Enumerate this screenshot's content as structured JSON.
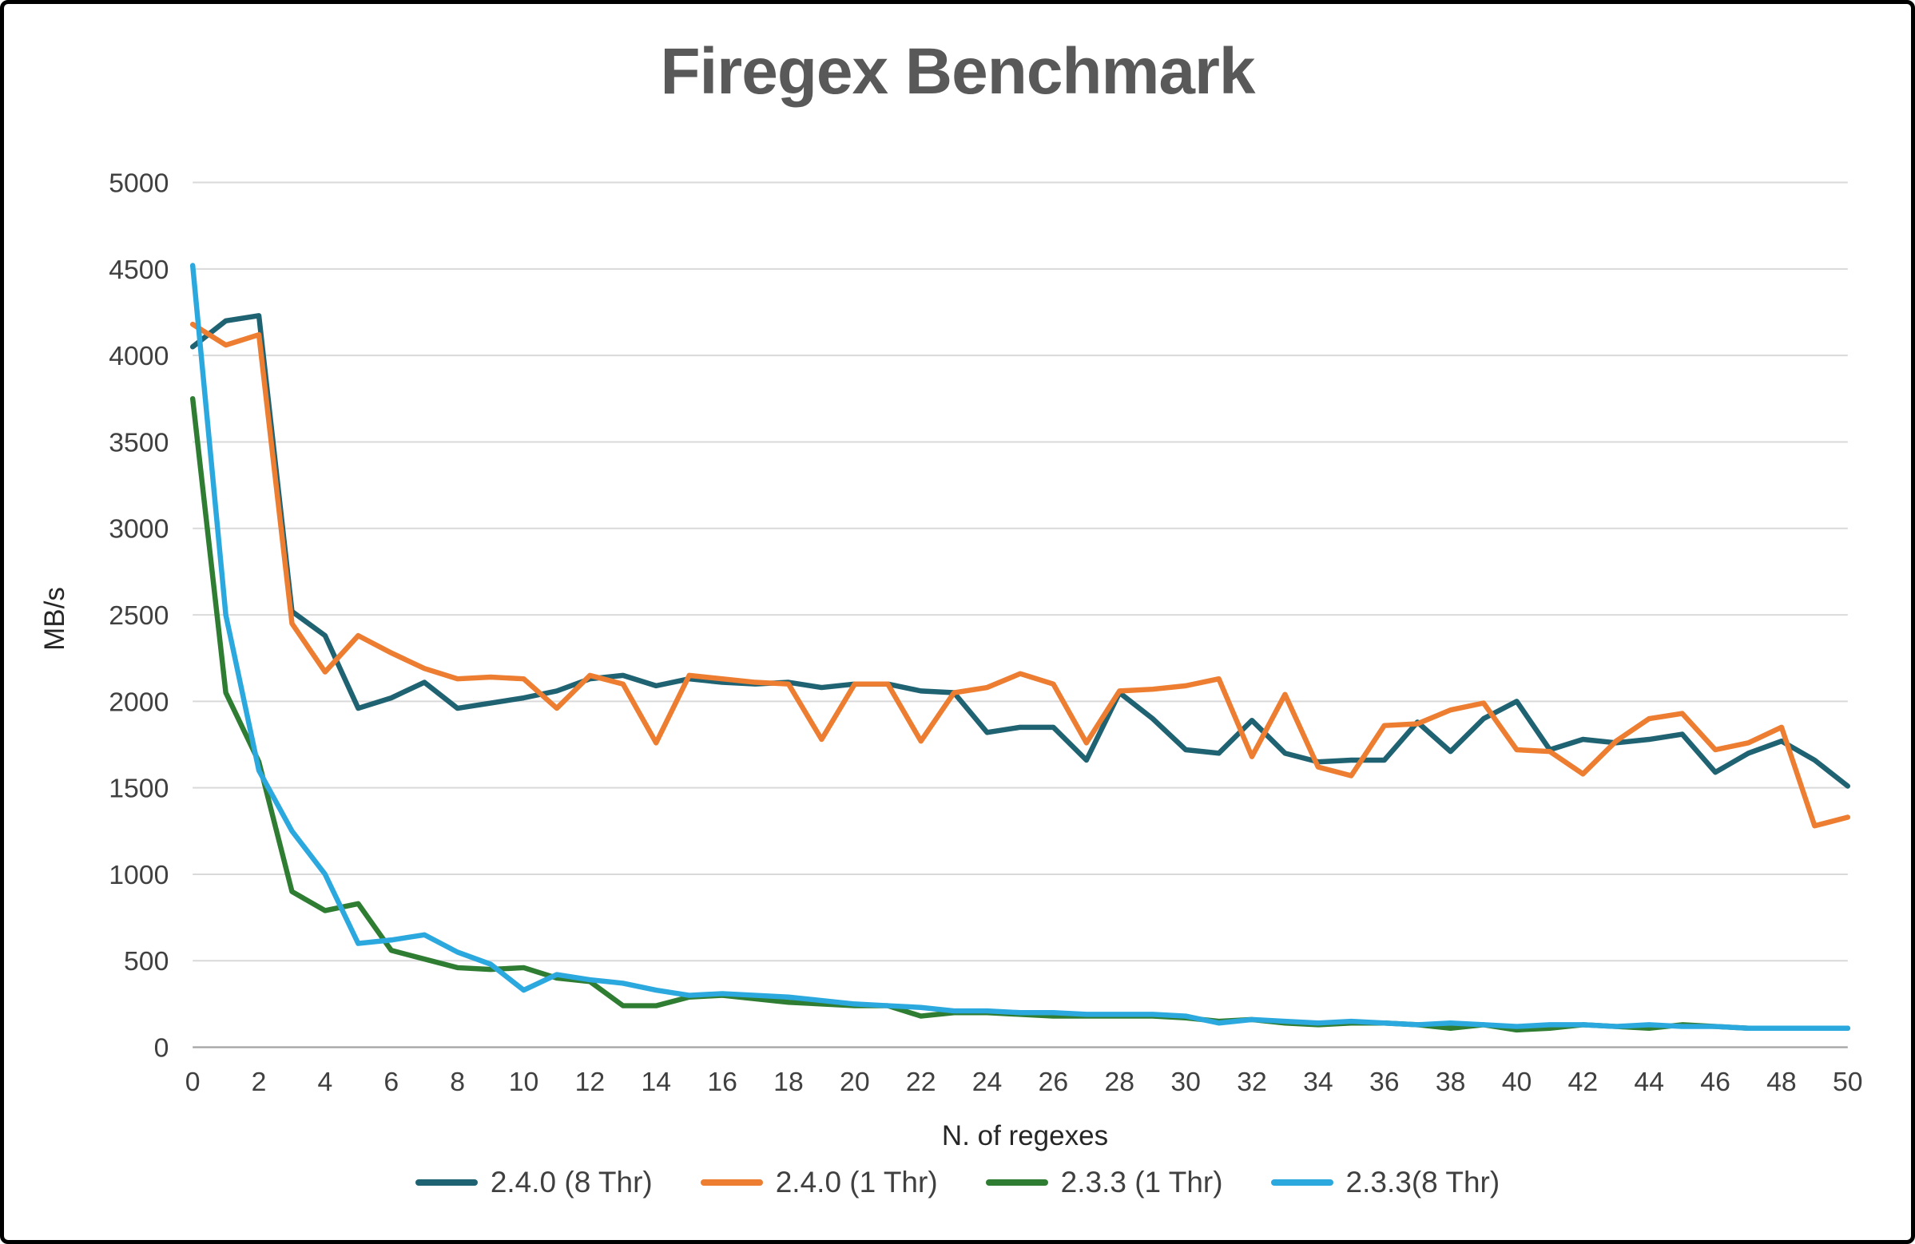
{
  "chart_data": {
    "type": "line",
    "title": "Firegex Benchmark",
    "xlabel": "N. of regexes",
    "ylabel": "MB/s",
    "ylim": [
      0,
      5000
    ],
    "ytick_step": 500,
    "xtick_step": 2,
    "grid": true,
    "legend_position": "bottom",
    "x": [
      0,
      1,
      2,
      3,
      4,
      5,
      6,
      7,
      8,
      9,
      10,
      11,
      12,
      13,
      14,
      15,
      16,
      17,
      18,
      19,
      20,
      21,
      22,
      23,
      24,
      25,
      26,
      27,
      28,
      29,
      30,
      31,
      32,
      33,
      34,
      35,
      36,
      37,
      38,
      39,
      40,
      41,
      42,
      43,
      44,
      45,
      46,
      47,
      48,
      49,
      50
    ],
    "series": [
      {
        "name": "2.4.0 (8 Thr)",
        "color": "#1F6373",
        "values": [
          4050,
          4200,
          4230,
          2520,
          2380,
          1960,
          2020,
          2110,
          1960,
          1990,
          2020,
          2060,
          2130,
          2150,
          2090,
          2130,
          2110,
          2100,
          2110,
          2080,
          2100,
          2100,
          2060,
          2050,
          1820,
          1850,
          1850,
          1660,
          2050,
          1900,
          1720,
          1700,
          1890,
          1700,
          1650,
          1660,
          1660,
          1880,
          1710,
          1900,
          2000,
          1720,
          1780,
          1760,
          1780,
          1810,
          1590,
          1700,
          1770,
          1660,
          1510
        ]
      },
      {
        "name": "2.4.0 (1 Thr)",
        "color": "#ED7D31",
        "values": [
          4180,
          4060,
          4120,
          2450,
          2170,
          2380,
          2280,
          2190,
          2130,
          2140,
          2130,
          1960,
          2150,
          2100,
          1760,
          2150,
          2130,
          2110,
          2100,
          1780,
          2100,
          2100,
          1770,
          2050,
          2080,
          2160,
          2100,
          1760,
          2060,
          2070,
          2090,
          2130,
          1680,
          2040,
          1620,
          1570,
          1860,
          1870,
          1950,
          1990,
          1720,
          1710,
          1580,
          1770,
          1900,
          1930,
          1720,
          1760,
          1850,
          1280,
          1330
        ]
      },
      {
        "name": "2.3.3 (1 Thr)",
        "color": "#2E7D32",
        "values": [
          3750,
          2050,
          1650,
          900,
          790,
          830,
          560,
          510,
          460,
          450,
          460,
          400,
          380,
          240,
          240,
          290,
          300,
          280,
          260,
          250,
          240,
          240,
          180,
          200,
          200,
          190,
          180,
          180,
          180,
          180,
          170,
          150,
          160,
          140,
          130,
          140,
          140,
          130,
          110,
          130,
          100,
          110,
          130,
          120,
          110,
          130,
          120,
          110,
          110,
          110,
          110
        ]
      },
      {
        "name": "2.3.3(8 Thr)",
        "color": "#2BA9DF",
        "values": [
          4520,
          2500,
          1600,
          1250,
          1000,
          600,
          620,
          650,
          550,
          480,
          330,
          420,
          390,
          370,
          330,
          300,
          310,
          300,
          290,
          270,
          250,
          240,
          230,
          210,
          210,
          200,
          200,
          190,
          190,
          190,
          180,
          140,
          160,
          150,
          140,
          150,
          140,
          130,
          140,
          130,
          120,
          130,
          130,
          120,
          130,
          120,
          120,
          110,
          110,
          110,
          110
        ]
      }
    ]
  }
}
